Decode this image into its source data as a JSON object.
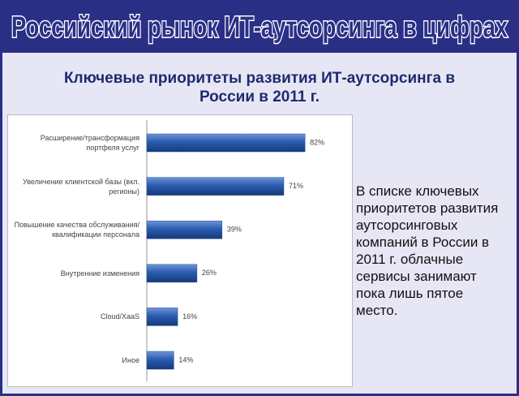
{
  "header": {
    "title": "Российский рынок ИТ-аутсорсинга в цифрах"
  },
  "chart_data": {
    "type": "bar",
    "orientation": "horizontal",
    "title": "Ключевые приоритеты развития ИТ-аутсорсинга в России в 2011 г.",
    "categories": [
      "Расширение/трансформация портфеля услуг",
      "Увеличение клиентской базы (вкл. регионы)",
      "Повышение качества обслуживания/квалификации персонала",
      "Внутренние изменения",
      "Cloud/XaaS",
      "Иное"
    ],
    "values": [
      82,
      71,
      39,
      26,
      16,
      14
    ],
    "value_labels": [
      "82%",
      "71%",
      "39%",
      "26%",
      "16%",
      "14%"
    ],
    "color": "#1f4f9c"
  },
  "side_text": "В списке ключевых приоритетов развития аутсорсинговых компаний в России в 2011 г. облачные сервисы занимают пока лишь пятое место."
}
